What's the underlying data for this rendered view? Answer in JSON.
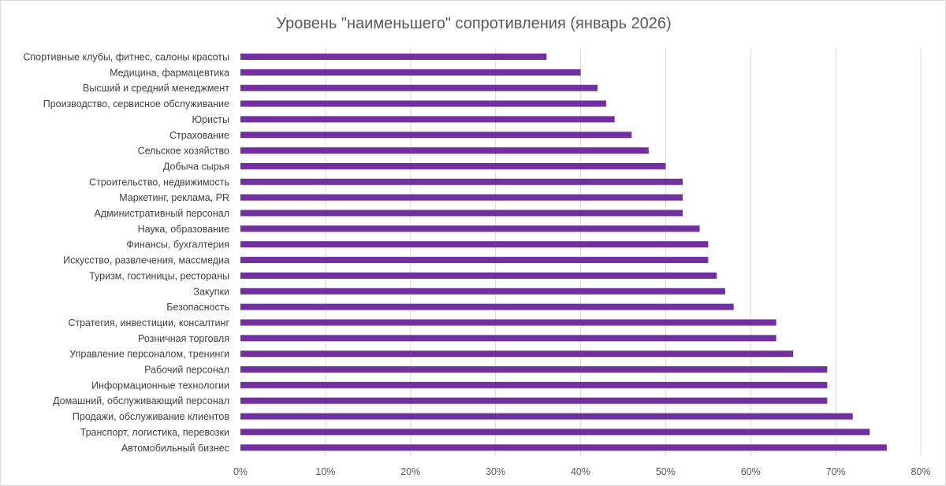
{
  "chart_data": {
    "type": "bar",
    "orientation": "horizontal",
    "title": "Уровень \"наименьшего\" сопротивления (январь 2026)",
    "xlabel": "",
    "ylabel": "",
    "xlim": [
      0,
      80
    ],
    "x_ticks": [
      "0%",
      "10%",
      "20%",
      "30%",
      "40%",
      "50%",
      "60%",
      "70%",
      "80%"
    ],
    "x_tick_values": [
      0,
      10,
      20,
      30,
      40,
      50,
      60,
      70,
      80
    ],
    "grid": "vertical",
    "bar_color": "#7030A0",
    "categories": [
      "Спортивные клубы, фитнес, салоны красоты",
      "Медицина, фармацевтика",
      "Высший и средний менеджмент",
      "Производство, сервисное обслуживание",
      "Юристы",
      "Страхование",
      "Сельское хозяйство",
      "Добыча сырья",
      "Строительство, недвижимость",
      "Маркетинг, реклама, PR",
      "Административный персонал",
      "Наука, образование",
      "Финансы, бухгалтерия",
      "Искусство, развлечения, массмедиа",
      "Туризм, гостиницы, рестораны",
      "Закупки",
      "Безопасность",
      "Стратегия, инвестиции, консалтинг",
      "Розничная торговля",
      "Управление персоналом, тренинги",
      "Рабочий персонал",
      "Информационные технологии",
      "Домашний, обслуживающий персонал",
      "Продажи, обслуживание клиентов",
      "Транспорт, логистика, перевозки",
      "Автомобильный бизнес"
    ],
    "values": [
      36,
      40,
      42,
      43,
      44,
      46,
      48,
      50,
      52,
      52,
      52,
      54,
      55,
      55,
      56,
      57,
      58,
      63,
      63,
      65,
      69,
      69,
      69,
      72,
      74,
      76
    ]
  }
}
